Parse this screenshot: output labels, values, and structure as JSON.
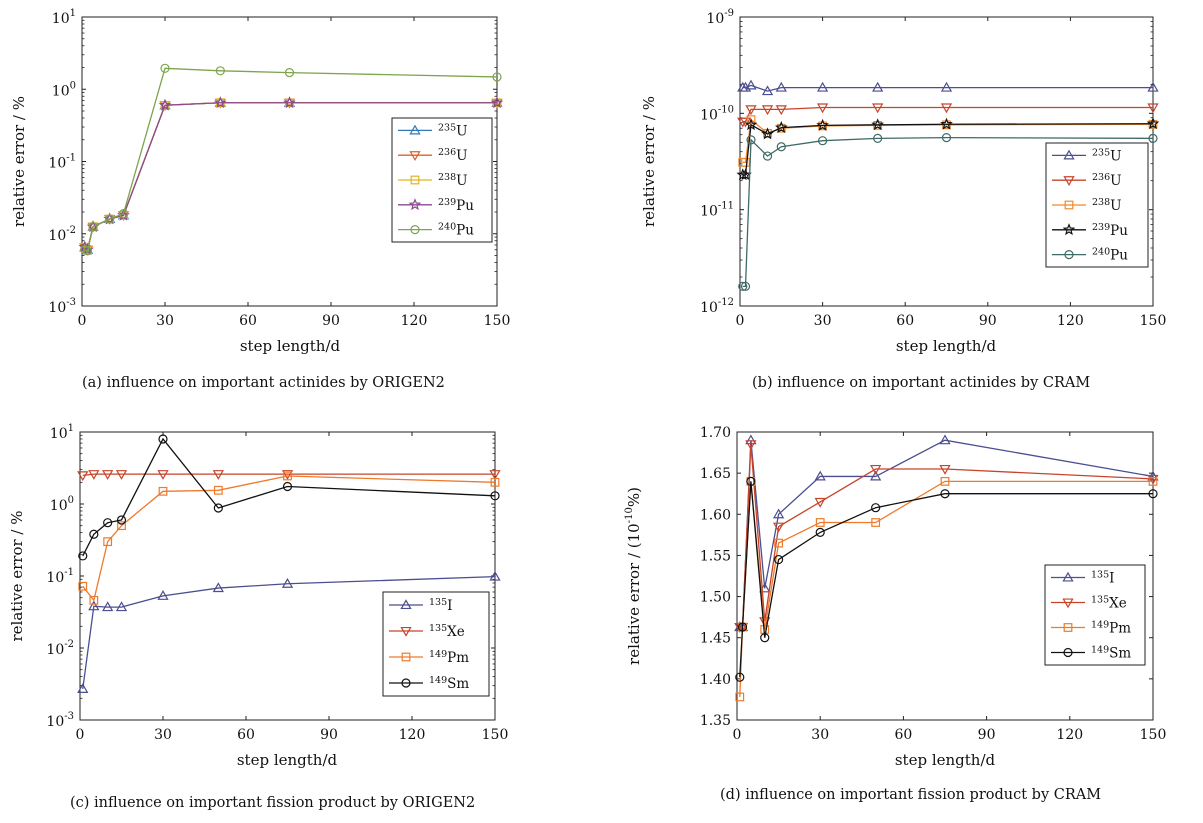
{
  "chart_data": [
    {
      "id": "a",
      "type": "line",
      "caption": "(a) influence on important actinides by ORIGEN2",
      "xlabel": "step length/d",
      "ylabel": "relative error / %",
      "yscale": "log",
      "xlim": [
        0,
        150
      ],
      "ylim": [
        0.001,
        10
      ],
      "xticks": [
        0,
        30,
        60,
        90,
        120,
        150
      ],
      "yticks": [
        {
          "v": 0.001,
          "base": "10",
          "exp": "-3"
        },
        {
          "v": 0.01,
          "base": "10",
          "exp": "-2"
        },
        {
          "v": 0.1,
          "base": "10",
          "exp": "-1"
        },
        {
          "v": 1,
          "base": "10",
          "exp": "0"
        },
        {
          "v": 10,
          "base": "10",
          "exp": "1"
        }
      ],
      "legend": "right-middle",
      "series": [
        {
          "sup": "235",
          "elem": "U",
          "color": "#2f7ab8",
          "marker": "tri-up",
          "x": [
            1,
            2,
            4,
            10,
            15,
            30,
            50,
            75,
            150
          ],
          "y": [
            0.0065,
            0.006,
            0.0125,
            0.016,
            0.018,
            0.6,
            0.65,
            0.65,
            0.65
          ]
        },
        {
          "sup": "236",
          "elem": "U",
          "color": "#d9622b",
          "marker": "tri-down",
          "x": [
            1,
            2,
            4,
            10,
            15,
            30,
            50,
            75,
            150
          ],
          "y": [
            0.0065,
            0.006,
            0.0125,
            0.016,
            0.018,
            0.6,
            0.65,
            0.65,
            0.65
          ]
        },
        {
          "sup": "238",
          "elem": "U",
          "color": "#e6b222",
          "marker": "square",
          "x": [
            1,
            2,
            4,
            10,
            15,
            30,
            50,
            75,
            150
          ],
          "y": [
            0.0065,
            0.006,
            0.0125,
            0.016,
            0.018,
            0.6,
            0.65,
            0.65,
            0.65
          ]
        },
        {
          "sup": "239",
          "elem": "Pu",
          "color": "#8a4a8e",
          "marker": "star",
          "x": [
            1,
            2,
            4,
            10,
            15,
            30,
            50,
            75,
            150
          ],
          "y": [
            0.0065,
            0.006,
            0.0125,
            0.016,
            0.018,
            0.6,
            0.65,
            0.65,
            0.65
          ]
        },
        {
          "sup": "240",
          "elem": "Pu",
          "color": "#7ea44e",
          "marker": "circle",
          "x": [
            1,
            2,
            4,
            10,
            15,
            30,
            50,
            75,
            150
          ],
          "y": [
            0.006,
            0.0058,
            0.0125,
            0.016,
            0.019,
            1.95,
            1.8,
            1.7,
            1.48
          ]
        }
      ]
    },
    {
      "id": "b",
      "type": "line",
      "caption": "(b) influence on important actinides by CRAM",
      "xlabel": "step length/d",
      "ylabel": "relative error / %",
      "yscale": "log",
      "xlim": [
        0,
        150
      ],
      "ylim": [
        1e-12,
        1e-09
      ],
      "xticks": [
        0,
        30,
        60,
        90,
        120,
        150
      ],
      "yticks": [
        {
          "v": 1e-12,
          "base": "10",
          "exp": "-12"
        },
        {
          "v": 1e-11,
          "base": "10",
          "exp": "-11"
        },
        {
          "v": 1e-10,
          "base": "10",
          "exp": "-10"
        },
        {
          "v": 1e-09,
          "base": "10",
          "exp": "-9"
        }
      ],
      "legend": "right-middle",
      "series": [
        {
          "sup": "235",
          "elem": "U",
          "color": "#4b4e90",
          "marker": "tri-up",
          "x": [
            1,
            2,
            4,
            10,
            15,
            30,
            50,
            75,
            150
          ],
          "y": [
            1.85e-10,
            1.85e-10,
            1.95e-10,
            1.7e-10,
            1.85e-10,
            1.85e-10,
            1.85e-10,
            1.85e-10,
            1.85e-10
          ]
        },
        {
          "sup": "236",
          "elem": "U",
          "color": "#c7442a",
          "marker": "tri-down",
          "x": [
            1,
            2,
            4,
            10,
            15,
            30,
            50,
            75,
            150
          ],
          "y": [
            8.2e-11,
            8.2e-11,
            1.1e-10,
            1.1e-10,
            1.1e-10,
            1.15e-10,
            1.15e-10,
            1.15e-10,
            1.15e-10
          ]
        },
        {
          "sup": "238",
          "elem": "U",
          "color": "#ef8a2a",
          "marker": "square",
          "x": [
            1,
            2,
            4,
            10,
            15,
            30,
            50,
            75,
            150
          ],
          "y": [
            3.1e-11,
            3.1e-11,
            8.6e-11,
            6.2e-11,
            7e-11,
            7.4e-11,
            7.5e-11,
            7.6e-11,
            7.7e-11
          ]
        },
        {
          "sup": "239",
          "elem": "Pu",
          "color": "#111111",
          "marker": "star",
          "x": [
            1,
            2,
            4,
            10,
            15,
            30,
            50,
            75,
            150
          ],
          "y": [
            2.3e-11,
            2.3e-11,
            7.6e-11,
            6.1e-11,
            7.1e-11,
            7.5e-11,
            7.6e-11,
            7.7e-11,
            7.8e-11
          ]
        },
        {
          "sup": "240",
          "elem": "Pu",
          "color": "#3e6b68",
          "marker": "circle",
          "x": [
            1,
            2,
            4,
            10,
            15,
            30,
            50,
            75,
            150
          ],
          "y": [
            1.6e-12,
            1.6e-12,
            5.3e-11,
            3.6e-11,
            4.5e-11,
            5.2e-11,
            5.5e-11,
            5.6e-11,
            5.5e-11
          ]
        }
      ]
    },
    {
      "id": "c",
      "type": "line",
      "caption": "(c) influence on important fission product by ORIGEN2",
      "xlabel": "step length/d",
      "ylabel": "relative error / %",
      "yscale": "log",
      "xlim": [
        0,
        150
      ],
      "ylim": [
        0.001,
        10
      ],
      "xticks": [
        0,
        30,
        60,
        90,
        120,
        150
      ],
      "yticks": [
        {
          "v": 0.001,
          "base": "10",
          "exp": "-3"
        },
        {
          "v": 0.01,
          "base": "10",
          "exp": "-2"
        },
        {
          "v": 0.1,
          "base": "10",
          "exp": "-1"
        },
        {
          "v": 1,
          "base": "10",
          "exp": "0"
        },
        {
          "v": 10,
          "base": "10",
          "exp": "1"
        }
      ],
      "legend": "bottom-right",
      "series": [
        {
          "sup": "135",
          "elem": "I",
          "color": "#4b4e90",
          "marker": "tri-up",
          "x": [
            1,
            5,
            10,
            15,
            30,
            50,
            75,
            150
          ],
          "y": [
            0.0027,
            0.038,
            0.037,
            0.037,
            0.053,
            0.068,
            0.078,
            0.098
          ]
        },
        {
          "sup": "135",
          "elem": "Xe",
          "color": "#c7442a",
          "marker": "tri-down",
          "x": [
            1,
            5,
            10,
            15,
            30,
            50,
            75,
            150
          ],
          "y": [
            2.5,
            2.6,
            2.6,
            2.6,
            2.6,
            2.6,
            2.6,
            2.6
          ]
        },
        {
          "sup": "149",
          "elem": "Pm",
          "color": "#ef7a2a",
          "marker": "square",
          "x": [
            1,
            5,
            10,
            15,
            30,
            50,
            75,
            150
          ],
          "y": [
            0.072,
            0.046,
            0.3,
            0.5,
            1.5,
            1.55,
            2.45,
            2.0
          ]
        },
        {
          "sup": "149",
          "elem": "Sm",
          "color": "#111111",
          "marker": "circle",
          "x": [
            1,
            5,
            10,
            15,
            30,
            50,
            75,
            150
          ],
          "y": [
            0.19,
            0.38,
            0.55,
            0.6,
            8.0,
            0.88,
            1.75,
            1.3
          ]
        }
      ]
    },
    {
      "id": "d",
      "type": "line",
      "caption": "(d) influence on important fission product by CRAM",
      "xlabel": "step length/d",
      "ylabel": "relative error / (10",
      "ylabel_sup": "-10",
      "ylabel_tail": "%)",
      "yscale": "linear",
      "xlim": [
        0,
        150
      ],
      "ylim": [
        1.35,
        1.7
      ],
      "xticks": [
        0,
        30,
        60,
        90,
        120,
        150
      ],
      "yticks": [
        {
          "v": 1.35,
          "label": "1.35"
        },
        {
          "v": 1.4,
          "label": "1.40"
        },
        {
          "v": 1.45,
          "label": "1.45"
        },
        {
          "v": 1.5,
          "label": "1.50"
        },
        {
          "v": 1.55,
          "label": "1.55"
        },
        {
          "v": 1.6,
          "label": "1.60"
        },
        {
          "v": 1.65,
          "label": "1.65"
        },
        {
          "v": 1.7,
          "label": "1.70"
        }
      ],
      "legend": "right-middle",
      "series": [
        {
          "sup": "135",
          "elem": "I",
          "color": "#4b4e90",
          "marker": "tri-up",
          "x": [
            1,
            2,
            5,
            10,
            15,
            30,
            50,
            75,
            150
          ],
          "y": [
            1.463,
            1.463,
            1.69,
            1.51,
            1.6,
            1.646,
            1.646,
            1.69,
            1.646
          ]
        },
        {
          "sup": "135",
          "elem": "Xe",
          "color": "#c7442a",
          "marker": "tri-down",
          "x": [
            1,
            2,
            5,
            10,
            15,
            30,
            50,
            75,
            150
          ],
          "y": [
            1.463,
            1.463,
            1.685,
            1.47,
            1.585,
            1.615,
            1.655,
            1.655,
            1.643
          ]
        },
        {
          "sup": "149",
          "elem": "Pm",
          "color": "#ef7a2a",
          "marker": "square",
          "x": [
            1,
            2,
            5,
            10,
            15,
            30,
            50,
            75,
            150
          ],
          "y": [
            1.378,
            1.463,
            1.64,
            1.46,
            1.565,
            1.59,
            1.59,
            1.64,
            1.64
          ]
        },
        {
          "sup": "149",
          "elem": "Sm",
          "color": "#111111",
          "marker": "circle",
          "x": [
            1,
            2,
            5,
            10,
            15,
            30,
            50,
            75,
            150
          ],
          "y": [
            1.402,
            1.463,
            1.64,
            1.45,
            1.545,
            1.578,
            1.608,
            1.625,
            1.625
          ]
        }
      ]
    }
  ]
}
